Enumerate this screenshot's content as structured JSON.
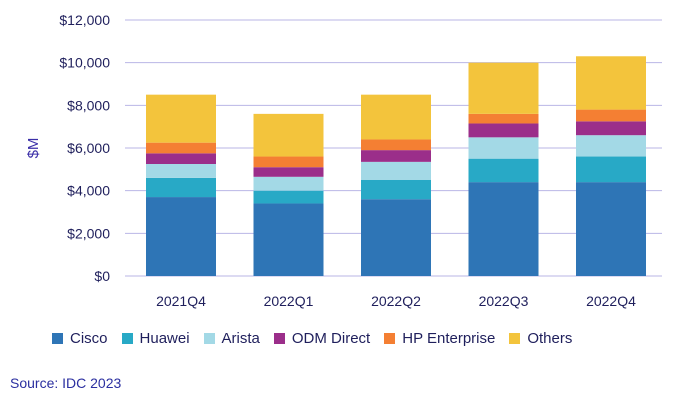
{
  "chart_data": {
    "type": "bar",
    "stacked": true,
    "categories": [
      "2021Q4",
      "2022Q1",
      "2022Q2",
      "2022Q3",
      "2022Q4"
    ],
    "ylabel": "$M",
    "ylim": [
      0,
      12000
    ],
    "yticks": [
      0,
      2000,
      4000,
      6000,
      8000,
      10000,
      12000
    ],
    "ytick_labels": [
      "$0",
      "$2,000",
      "$4,000",
      "$6,000",
      "$8,000",
      "$10,000",
      "$12,000"
    ],
    "grid": true,
    "legend_position": "bottom",
    "series": [
      {
        "name": "Cisco",
        "color": "#2e75b6",
        "values": [
          3700,
          3400,
          3600,
          4400,
          4400
        ]
      },
      {
        "name": "Huawei",
        "color": "#28a9c6",
        "values": [
          900,
          600,
          900,
          1100,
          1200
        ]
      },
      {
        "name": "Arista",
        "color": "#a3d9e6",
        "values": [
          650,
          650,
          850,
          1000,
          1000
        ]
      },
      {
        "name": "ODM Direct",
        "color": "#9b2e8a",
        "values": [
          500,
          450,
          550,
          650,
          650
        ]
      },
      {
        "name": "HP Enterprise",
        "color": "#f47f33",
        "values": [
          500,
          500,
          500,
          450,
          550
        ]
      },
      {
        "name": "Others",
        "color": "#f3c43c",
        "values": [
          2250,
          2000,
          2100,
          2400,
          2500
        ]
      }
    ]
  },
  "source": "Source: IDC 2023"
}
